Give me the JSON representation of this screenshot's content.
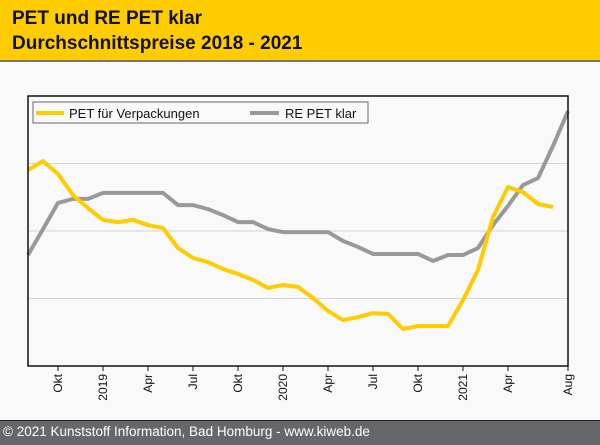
{
  "header": {
    "title_line1": "PET und RE PET klar",
    "title_line2": "Durchschnittspreise 2018 - 2021"
  },
  "footer": {
    "text": "© 2021 Kunststoff Information, Bad Homburg - www.kiweb.de"
  },
  "colors": {
    "header_bg": "#ffcc00",
    "footer_bg": "#66676b",
    "pet_series": "#ffcc00",
    "repet_series": "#999999"
  },
  "chart_data": {
    "type": "line",
    "title": "PET und RE PET klar Durchschnittspreise 2018 - 2021",
    "xlabel": "",
    "ylabel": "",
    "y_unit": "relative index (no y-axis labels shown)",
    "ylim": [
      0,
      100
    ],
    "y_gridlines": [
      25,
      50,
      75
    ],
    "grid": true,
    "legend_position": "top-left",
    "x_start_month": "2018-08",
    "x_end_month": "2021-08",
    "x_ticks": [
      {
        "month_index": 2,
        "label": "Okt"
      },
      {
        "month_index": 5,
        "label": "2019"
      },
      {
        "month_index": 8,
        "label": "Apr"
      },
      {
        "month_index": 11,
        "label": "Jul"
      },
      {
        "month_index": 14,
        "label": "Okt"
      },
      {
        "month_index": 17,
        "label": "2020"
      },
      {
        "month_index": 20,
        "label": "Apr"
      },
      {
        "month_index": 23,
        "label": "Jul"
      },
      {
        "month_index": 26,
        "label": "Okt"
      },
      {
        "month_index": 29,
        "label": "2021"
      },
      {
        "month_index": 32,
        "label": "Apr"
      },
      {
        "month_index": 36,
        "label": "Aug"
      }
    ],
    "series": [
      {
        "name": "PET für Verpackungen",
        "color": "#ffcc00",
        "values": [
          72.6,
          75.9,
          71.1,
          63.3,
          58.5,
          54.1,
          53.3,
          54.1,
          52.2,
          51.1,
          43.7,
          40.0,
          38.5,
          35.9,
          34.1,
          31.9,
          28.9,
          30.0,
          29.3,
          25.2,
          20.4,
          17.0,
          18.1,
          19.6,
          19.3,
          13.7,
          14.8,
          14.8,
          14.8,
          24.4,
          35.6,
          55.2,
          66.3,
          64.4,
          60.0,
          58.9
        ]
      },
      {
        "name": "RE PET klar",
        "color": "#999999",
        "values": [
          41.1,
          50.7,
          60.4,
          61.9,
          61.9,
          64.1,
          64.1,
          64.1,
          64.1,
          64.1,
          59.6,
          59.6,
          58.1,
          55.9,
          53.3,
          53.3,
          50.7,
          49.6,
          49.6,
          49.6,
          49.6,
          46.3,
          44.1,
          41.5,
          41.5,
          41.5,
          41.5,
          38.9,
          41.1,
          41.1,
          43.7,
          52.2,
          59.3,
          67.0,
          69.6,
          81.5,
          94.4
        ]
      }
    ]
  }
}
